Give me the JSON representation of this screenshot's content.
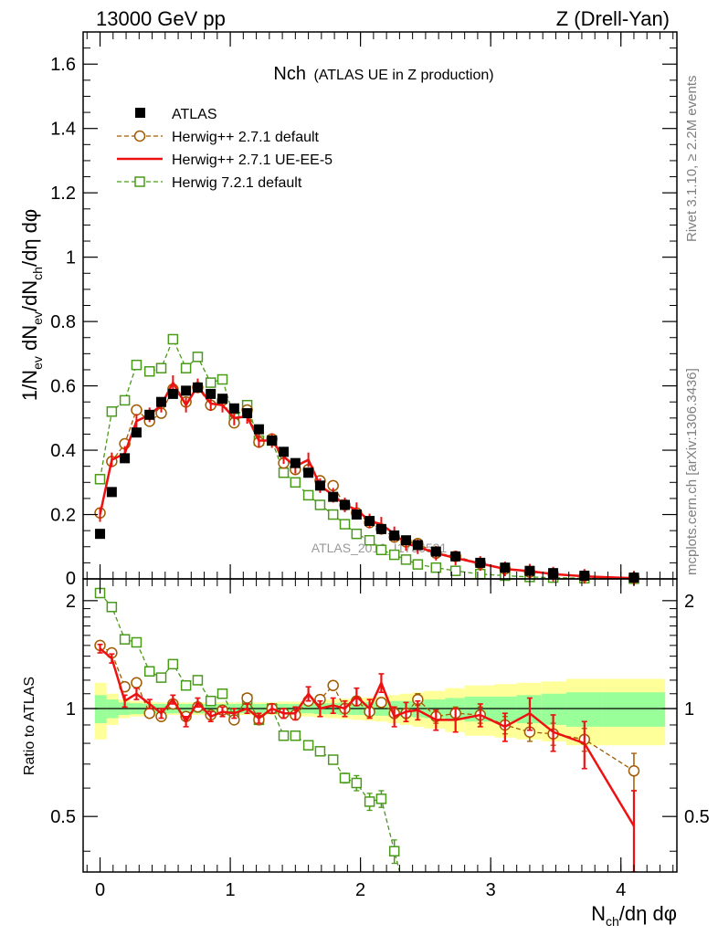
{
  "header": {
    "left": "13000 GeV pp",
    "right": "Z (Drell-Yan)"
  },
  "side_labels": {
    "rivet": "Rivet 3.1.10, ≥ 2.2M events",
    "mcplots": "mcplots.cern.ch [arXiv:1306.3436]"
  },
  "chart_data": [
    {
      "type": "scatter",
      "panel": "main",
      "title_main": "Nch",
      "title_sub": "(ATLAS UE in Z production)",
      "watermark": "ATLAS_2019_I1736531",
      "xlabel": "N_ch/dη dφ",
      "ylabel": "1/N_ev dN_ev/dN_ch/dη dφ",
      "xlim": [
        -0.13,
        4.43
      ],
      "ylim": [
        0,
        1.7
      ],
      "xticks": [
        0,
        1,
        2,
        3,
        4
      ],
      "yticks": [
        0.2,
        0.4,
        0.6,
        0.8,
        1,
        1.2,
        1.4,
        1.6
      ],
      "ytick_labels": [
        "0.2",
        "0.4",
        "0.6",
        "0.8",
        "1",
        "1.2",
        "1.4",
        "1.6"
      ],
      "bottom_tick_label": "0",
      "grid": false,
      "legend_position": "top-left",
      "series": [
        {
          "name": "ATLAS",
          "style": "data",
          "color": "#000000",
          "x": [
            0.0,
            0.09,
            0.19,
            0.28,
            0.38,
            0.47,
            0.56,
            0.66,
            0.75,
            0.85,
            0.94,
            1.03,
            1.13,
            1.22,
            1.32,
            1.41,
            1.5,
            1.6,
            1.69,
            1.79,
            1.88,
            1.97,
            2.07,
            2.16,
            2.26,
            2.35,
            2.44,
            2.58,
            2.73,
            2.92,
            3.11,
            3.3,
            3.48,
            3.72,
            4.1
          ],
          "y": [
            0.14,
            0.27,
            0.375,
            0.455,
            0.51,
            0.55,
            0.575,
            0.585,
            0.595,
            0.575,
            0.56,
            0.53,
            0.515,
            0.465,
            0.43,
            0.395,
            0.36,
            0.33,
            0.29,
            0.255,
            0.23,
            0.2,
            0.18,
            0.155,
            0.135,
            0.12,
            0.105,
            0.085,
            0.07,
            0.05,
            0.035,
            0.025,
            0.018,
            0.01,
            0.004
          ]
        },
        {
          "name": "Herwig++ 2.7.1 default",
          "style": "dashed-circle",
          "color": "#a05a00",
          "x": [
            0.0,
            0.09,
            0.19,
            0.28,
            0.38,
            0.47,
            0.56,
            0.66,
            0.75,
            0.85,
            0.94,
            1.03,
            1.13,
            1.22,
            1.32,
            1.41,
            1.5,
            1.6,
            1.69,
            1.79,
            1.88,
            1.97,
            2.07,
            2.16,
            2.26,
            2.35,
            2.44,
            2.58,
            2.73,
            2.92,
            3.11,
            3.3,
            3.48,
            3.72,
            4.1
          ],
          "y": [
            0.205,
            0.365,
            0.42,
            0.525,
            0.49,
            0.515,
            0.59,
            0.55,
            0.595,
            0.54,
            0.555,
            0.485,
            0.525,
            0.425,
            0.435,
            0.36,
            0.34,
            0.34,
            0.305,
            0.29,
            0.23,
            0.205,
            0.175,
            0.155,
            0.13,
            0.115,
            0.11,
            0.08,
            0.07,
            0.048,
            0.031,
            0.021,
            0.015,
            0.009,
            0.003
          ]
        },
        {
          "name": "Herwig++ 2.7.1 UE-EE-5",
          "style": "solid-line",
          "color": "#ee1111",
          "x": [
            0.0,
            0.09,
            0.19,
            0.28,
            0.38,
            0.47,
            0.56,
            0.66,
            0.75,
            0.85,
            0.94,
            1.03,
            1.13,
            1.22,
            1.32,
            1.41,
            1.5,
            1.6,
            1.69,
            1.79,
            1.88,
            1.97,
            2.07,
            2.16,
            2.26,
            2.35,
            2.44,
            2.58,
            2.73,
            2.92,
            3.11,
            3.3,
            3.48,
            3.72,
            4.1
          ],
          "y": [
            0.2,
            0.37,
            0.39,
            0.49,
            0.51,
            0.54,
            0.61,
            0.54,
            0.6,
            0.545,
            0.54,
            0.5,
            0.505,
            0.43,
            0.43,
            0.38,
            0.35,
            0.37,
            0.29,
            0.26,
            0.23,
            0.215,
            0.18,
            0.17,
            0.14,
            0.11,
            0.1,
            0.08,
            0.065,
            0.048,
            0.031,
            0.024,
            0.015,
            0.008,
            0.002
          ]
        },
        {
          "name": "Herwig 7.2.1 default",
          "style": "dashed-square",
          "color": "#4a9a1a",
          "x": [
            0.0,
            0.09,
            0.19,
            0.28,
            0.38,
            0.47,
            0.56,
            0.66,
            0.75,
            0.85,
            0.94,
            1.03,
            1.13,
            1.22,
            1.32,
            1.41,
            1.5,
            1.6,
            1.69,
            1.79,
            1.88,
            1.97,
            2.07,
            2.16,
            2.26,
            2.35,
            2.44,
            2.58,
            2.73,
            2.92,
            3.11,
            3.3,
            3.48,
            3.72,
            4.1
          ],
          "y": [
            0.31,
            0.52,
            0.555,
            0.665,
            0.645,
            0.655,
            0.745,
            0.655,
            0.69,
            0.61,
            0.62,
            0.5,
            0.54,
            0.43,
            0.43,
            0.33,
            0.3,
            0.26,
            0.23,
            0.2,
            0.17,
            0.14,
            0.12,
            0.09,
            0.075,
            0.06,
            0.045,
            0.035,
            0.025,
            0.015,
            0.01,
            0.006,
            0.004,
            0.002,
            0.0005
          ]
        }
      ]
    },
    {
      "type": "line",
      "panel": "ratio",
      "ylabel": "Ratio to ATLAS",
      "xlim": [
        -0.13,
        4.43
      ],
      "ylim": [
        0.35,
        2.3
      ],
      "xticks": [
        0,
        1,
        2,
        3,
        4
      ],
      "xtick_labels": [
        "0",
        "1",
        "2",
        "3",
        "4"
      ],
      "yticks": [
        0.5,
        1,
        2
      ],
      "ytick_labels": [
        "0.5",
        "1",
        "2"
      ],
      "band_edges": [
        -0.04,
        0.05,
        0.14,
        0.23,
        0.33,
        0.42,
        0.52,
        0.61,
        0.7,
        0.8,
        0.89,
        0.99,
        1.08,
        1.17,
        1.27,
        1.36,
        1.46,
        1.55,
        1.64,
        1.74,
        1.83,
        1.93,
        2.02,
        2.11,
        2.21,
        2.3,
        2.4,
        2.49,
        2.65,
        2.8,
        3.03,
        3.2,
        3.39,
        3.58,
        3.86,
        4.34
      ],
      "band_inner": [
        0.09,
        0.06,
        0.04,
        0.035,
        0.03,
        0.03,
        0.03,
        0.03,
        0.03,
        0.03,
        0.03,
        0.03,
        0.03,
        0.03,
        0.03,
        0.03,
        0.03,
        0.03,
        0.035,
        0.035,
        0.04,
        0.04,
        0.04,
        0.045,
        0.05,
        0.05,
        0.055,
        0.06,
        0.07,
        0.08,
        0.08,
        0.09,
        0.1,
        0.11,
        0.11
      ],
      "band_outer": [
        0.18,
        0.1,
        0.06,
        0.05,
        0.045,
        0.04,
        0.04,
        0.04,
        0.04,
        0.04,
        0.04,
        0.04,
        0.04,
        0.04,
        0.04,
        0.045,
        0.045,
        0.05,
        0.055,
        0.06,
        0.065,
        0.07,
        0.075,
        0.08,
        0.09,
        0.1,
        0.11,
        0.12,
        0.14,
        0.16,
        0.17,
        0.18,
        0.19,
        0.21,
        0.21
      ],
      "band_colors": {
        "inner": "#99ff99",
        "outer": "#ffff99"
      },
      "series": [
        {
          "name": "Herwig++ 2.7.1 default",
          "color": "#a05a00",
          "x": [
            0.0,
            0.09,
            0.19,
            0.28,
            0.38,
            0.47,
            0.56,
            0.66,
            0.75,
            0.85,
            0.94,
            1.03,
            1.13,
            1.22,
            1.32,
            1.41,
            1.5,
            1.6,
            1.69,
            1.79,
            1.88,
            1.97,
            2.07,
            2.16,
            2.26,
            2.35,
            2.44,
            2.58,
            2.73,
            2.92,
            3.11,
            3.3,
            3.48,
            3.72,
            4.1
          ],
          "y": [
            1.5,
            1.43,
            1.15,
            1.18,
            0.97,
            0.95,
            1.03,
            0.95,
            1.01,
            0.96,
            0.99,
            0.93,
            1.07,
            0.93,
            1.0,
            0.97,
            0.96,
            1.05,
            1.06,
            1.16,
            1.0,
            1.05,
            0.98,
            1.04,
            0.97,
            0.97,
            1.06,
            0.95,
            0.97,
            0.96,
            0.9,
            0.86,
            0.85,
            0.82,
            0.67
          ],
          "err": [
            0.03,
            0.03,
            0.03,
            0.03,
            0.02,
            0.02,
            0.02,
            0.02,
            0.02,
            0.02,
            0.02,
            0.02,
            0.02,
            0.02,
            0.02,
            0.02,
            0.02,
            0.03,
            0.03,
            0.03,
            0.03,
            0.03,
            0.03,
            0.03,
            0.03,
            0.03,
            0.04,
            0.04,
            0.04,
            0.05,
            0.05,
            0.05,
            0.06,
            0.06,
            0.08
          ]
        },
        {
          "name": "Herwig++ 2.7.1 UE-EE-5",
          "color": "#ee1111",
          "x": [
            0.0,
            0.09,
            0.19,
            0.28,
            0.38,
            0.47,
            0.56,
            0.66,
            0.75,
            0.85,
            0.94,
            1.03,
            1.13,
            1.22,
            1.32,
            1.41,
            1.5,
            1.6,
            1.69,
            1.79,
            1.88,
            1.97,
            2.07,
            2.16,
            2.26,
            2.35,
            2.44,
            2.58,
            2.73,
            2.92,
            3.11,
            3.3,
            3.48,
            3.72,
            4.1
          ],
          "y": [
            1.47,
            1.38,
            1.05,
            1.1,
            1.03,
            0.97,
            1.06,
            0.92,
            1.04,
            0.95,
            0.98,
            0.97,
            1.0,
            0.94,
            1.0,
            0.97,
            0.97,
            1.1,
            1.0,
            1.02,
            1.0,
            1.08,
            1.0,
            1.18,
            0.95,
            0.98,
            0.99,
            0.93,
            0.93,
            0.96,
            0.89,
            0.97,
            0.86,
            0.8,
            0.47
          ],
          "err": [
            0.04,
            0.04,
            0.04,
            0.04,
            0.03,
            0.03,
            0.03,
            0.03,
            0.03,
            0.03,
            0.03,
            0.03,
            0.03,
            0.03,
            0.03,
            0.03,
            0.04,
            0.05,
            0.05,
            0.05,
            0.05,
            0.06,
            0.06,
            0.07,
            0.06,
            0.06,
            0.06,
            0.06,
            0.07,
            0.07,
            0.08,
            0.1,
            0.1,
            0.12,
            0.12
          ]
        },
        {
          "name": "Herwig 7.2.1 default",
          "color": "#4a9a1a",
          "x": [
            0.0,
            0.09,
            0.19,
            0.28,
            0.38,
            0.47,
            0.56,
            0.66,
            0.75,
            0.85,
            0.94,
            1.03,
            1.13,
            1.22,
            1.32,
            1.41,
            1.5,
            1.6,
            1.69,
            1.79,
            1.88,
            1.97,
            2.07,
            2.16,
            2.26,
            2.35
          ],
          "y": [
            2.1,
            1.92,
            1.56,
            1.53,
            1.27,
            1.22,
            1.33,
            1.16,
            1.2,
            1.05,
            1.1,
            0.95,
            1.06,
            0.93,
            1.0,
            0.84,
            0.84,
            0.79,
            0.76,
            0.72,
            0.64,
            0.62,
            0.55,
            0.56,
            0.4,
            0.3
          ],
          "err": [
            0.03,
            0.03,
            0.03,
            0.03,
            0.02,
            0.02,
            0.02,
            0.02,
            0.02,
            0.02,
            0.02,
            0.02,
            0.02,
            0.02,
            0.02,
            0.02,
            0.02,
            0.02,
            0.02,
            0.02,
            0.02,
            0.03,
            0.03,
            0.03,
            0.03,
            0.04
          ]
        }
      ]
    }
  ]
}
